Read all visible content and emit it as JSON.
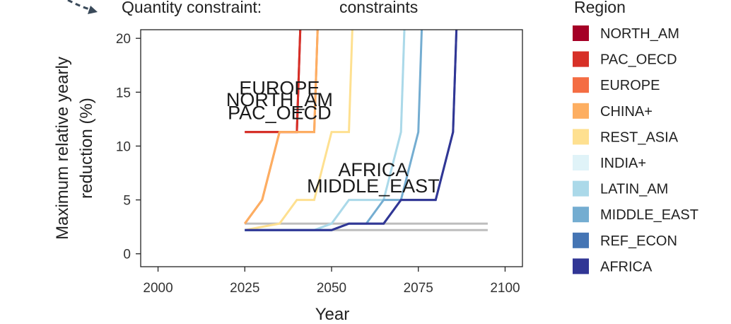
{
  "header": {
    "left_text": "Quantity constraint:",
    "right_text": "constraints"
  },
  "chart_data": {
    "type": "line",
    "xlabel": "Year",
    "ylabel_lines": [
      "Maximum relative yearly",
      "reduction (%)"
    ],
    "xlim": [
      1995,
      2105
    ],
    "ylim": [
      -1.2,
      20.8
    ],
    "x_ticks": [
      "2000",
      "2025",
      "2050",
      "2075",
      "2100"
    ],
    "y_ticks": [
      "0",
      "5",
      "10",
      "15",
      "20"
    ],
    "legend_title": "Region",
    "series": [
      {
        "name": "NORTH_AM",
        "color": "#a50026",
        "x": [
          2025,
          2030,
          2035,
          2040,
          2041
        ],
        "y": [
          11.3,
          11.3,
          11.3,
          11.3,
          21
        ]
      },
      {
        "name": "PAC_OECD",
        "color": "#d73027",
        "x": [
          2025,
          2030,
          2035,
          2040,
          2041
        ],
        "y": [
          11.3,
          11.3,
          11.3,
          11.3,
          21
        ]
      },
      {
        "name": "EUROPE",
        "color": "#f46d43",
        "x": [
          2025,
          2030,
          2035,
          2040,
          2045,
          2046
        ],
        "y": [
          2.8,
          5,
          11.3,
          11.3,
          11.3,
          21
        ]
      },
      {
        "name": "CHINA+",
        "color": "#fdae61",
        "x": [
          2025,
          2030,
          2035,
          2040,
          2045,
          2046
        ],
        "y": [
          2.8,
          5,
          11.3,
          11.3,
          11.3,
          21
        ]
      },
      {
        "name": "REST_ASIA",
        "color": "#fee090",
        "x": [
          2025,
          2035,
          2040,
          2045,
          2050,
          2055,
          2056
        ],
        "y": [
          2.2,
          2.8,
          5,
          5,
          11.3,
          11.3,
          21
        ]
      },
      {
        "name": "INDIA+",
        "color": "#e0f3f8",
        "x": [
          2025,
          2045,
          2050,
          2055,
          2060,
          2065,
          2070,
          2071
        ],
        "y": [
          2.2,
          2.2,
          2.8,
          5,
          5,
          5,
          11.3,
          21
        ]
      },
      {
        "name": "LATIN_AM",
        "color": "#abd9e9",
        "x": [
          2025,
          2045,
          2050,
          2055,
          2060,
          2065,
          2070,
          2071
        ],
        "y": [
          2.2,
          2.2,
          2.8,
          5,
          5,
          5,
          11.3,
          21
        ]
      },
      {
        "name": "MIDDLE_EAST",
        "color": "#74add1",
        "x": [
          2025,
          2050,
          2055,
          2060,
          2065,
          2070,
          2075,
          2076
        ],
        "y": [
          2.2,
          2.2,
          2.8,
          2.8,
          5,
          5,
          11.3,
          21
        ]
      },
      {
        "name": "REF_ECON",
        "color": "#4575b4",
        "x": [
          2025,
          2050,
          2055,
          2060,
          2065,
          2070,
          2075,
          2080,
          2085,
          2086
        ],
        "y": [
          2.2,
          2.2,
          2.8,
          2.8,
          2.8,
          5,
          5,
          5,
          11.3,
          21
        ]
      },
      {
        "name": "AFRICA",
        "color": "#313695",
        "x": [
          2025,
          2050,
          2055,
          2060,
          2065,
          2070,
          2075,
          2080,
          2085,
          2086
        ],
        "y": [
          2.2,
          2.2,
          2.8,
          2.8,
          2.8,
          5,
          5,
          5,
          11.3,
          21
        ]
      }
    ],
    "reference_lines": [
      {
        "color": "#bdbdbd",
        "x": [
          2025,
          2095
        ],
        "y": [
          2.8,
          2.8
        ]
      },
      {
        "color": "#bdbdbd",
        "x": [
          2025,
          2095
        ],
        "y": [
          2.2,
          2.2
        ]
      }
    ],
    "annotations": [
      {
        "text": "EUROPE",
        "x": 2035,
        "y": 14.8
      },
      {
        "text": "NORTH_AM",
        "x": 2035,
        "y": 13.7
      },
      {
        "text": "PAC_OECD",
        "x": 2035,
        "y": 12.5
      },
      {
        "text": "AFRICA",
        "x": 2062,
        "y": 7.2
      },
      {
        "text": "MIDDLE_EAST",
        "x": 2062,
        "y": 5.7
      }
    ]
  }
}
